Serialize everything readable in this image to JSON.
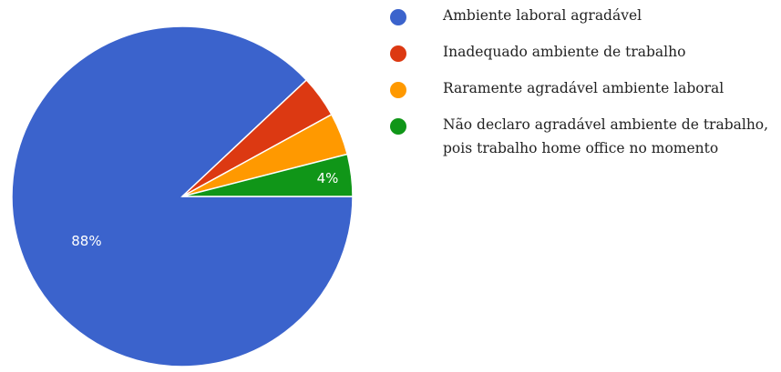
{
  "chart_data": {
    "type": "pie",
    "title": "",
    "legend_position": "right",
    "slices": [
      {
        "label": "Ambiente laboral agradável",
        "value": 88,
        "display": "88%",
        "color": "#3b63cc"
      },
      {
        "label": "Inadequado ambiente de trabalho",
        "value": 4,
        "display": "",
        "color": "#dc3912"
      },
      {
        "label": "Raramente agradável ambiente laboral",
        "value": 4,
        "display": "",
        "color": "#ff9900"
      },
      {
        "label": "Não declaro agradável ambiente de trabalho, pois trabalho home office no momento",
        "value": 4,
        "display": "4%",
        "color": "#109618"
      }
    ]
  }
}
